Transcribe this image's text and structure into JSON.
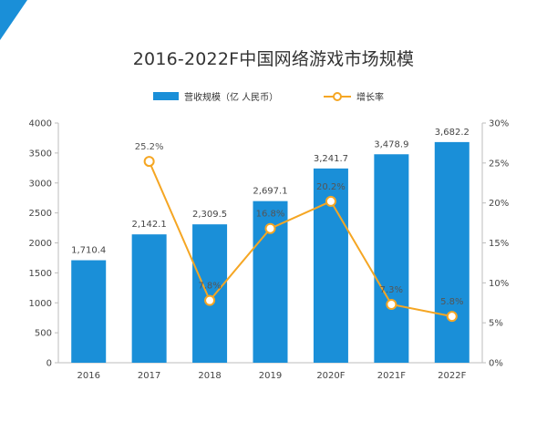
{
  "chart_data": {
    "type": "bar",
    "title": "2016-2022F中国网络游戏市场规模",
    "categories": [
      "2016",
      "2017",
      "2018",
      "2019",
      "2020F",
      "2021F",
      "2022F"
    ],
    "series": [
      {
        "name": "营收规模（亿 人民币）",
        "type": "bar",
        "axis": "left",
        "values": [
          1710.4,
          2142.1,
          2309.5,
          2697.1,
          3241.7,
          3478.9,
          3682.2
        ],
        "labels": [
          "1,710.4",
          "2,142.1",
          "2,309.5",
          "2,697.1",
          "3,241.7",
          "3,478.9",
          "3,682.2"
        ]
      },
      {
        "name": "增长率",
        "type": "line",
        "axis": "right",
        "values": [
          null,
          25.2,
          7.8,
          16.8,
          20.2,
          7.3,
          5.8
        ],
        "labels": [
          "",
          "25.2%",
          "7.8%",
          "16.8%",
          "20.2%",
          "7.3%",
          "5.8%"
        ]
      }
    ],
    "ylim_left": [
      0,
      4000
    ],
    "yticks_left": [
      "0",
      "500",
      "1000",
      "1500",
      "2000",
      "2500",
      "3000",
      "3500",
      "4000"
    ],
    "ylim_right": [
      0,
      30
    ],
    "yticks_right": [
      "0%",
      "5%",
      "10%",
      "15%",
      "20%",
      "25%",
      "30%"
    ],
    "legend_position": "top-center",
    "grid": false,
    "colors": {
      "bar": "#1a8fd8",
      "line": "#f5a623",
      "corner": "#1a8fd8"
    }
  }
}
